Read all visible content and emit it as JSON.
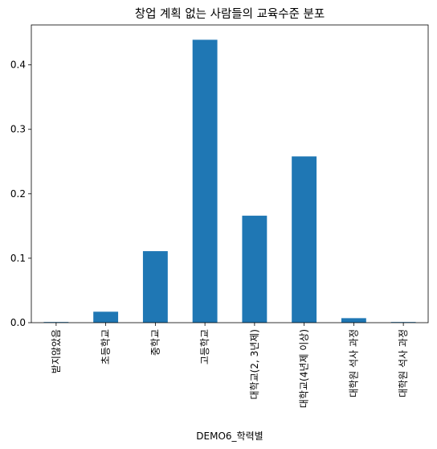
{
  "chart_data": {
    "type": "bar",
    "title": "창업 계획 없는 사람들의 교육수준 분포",
    "xlabel": "DEMO6_학력별",
    "ylabel": "",
    "categories": [
      "받지않았음",
      "초등학교",
      "중학교",
      "고등학교",
      "대학교(2, 3년제)",
      "대학교(4년제 이상)",
      "대학원 석사 과정",
      "대학원 석사 과정"
    ],
    "values": [
      0.001,
      0.017,
      0.111,
      0.439,
      0.166,
      0.258,
      0.007,
      0.001
    ],
    "ylim": [
      0,
      0.462
    ],
    "yticks": [
      0.0,
      0.1,
      0.2,
      0.3,
      0.4
    ],
    "ytick_labels": [
      "0.0",
      "0.1",
      "0.2",
      "0.3",
      "0.4"
    ],
    "bar_color": "#1f77b4",
    "grid": false,
    "legend": "none"
  }
}
